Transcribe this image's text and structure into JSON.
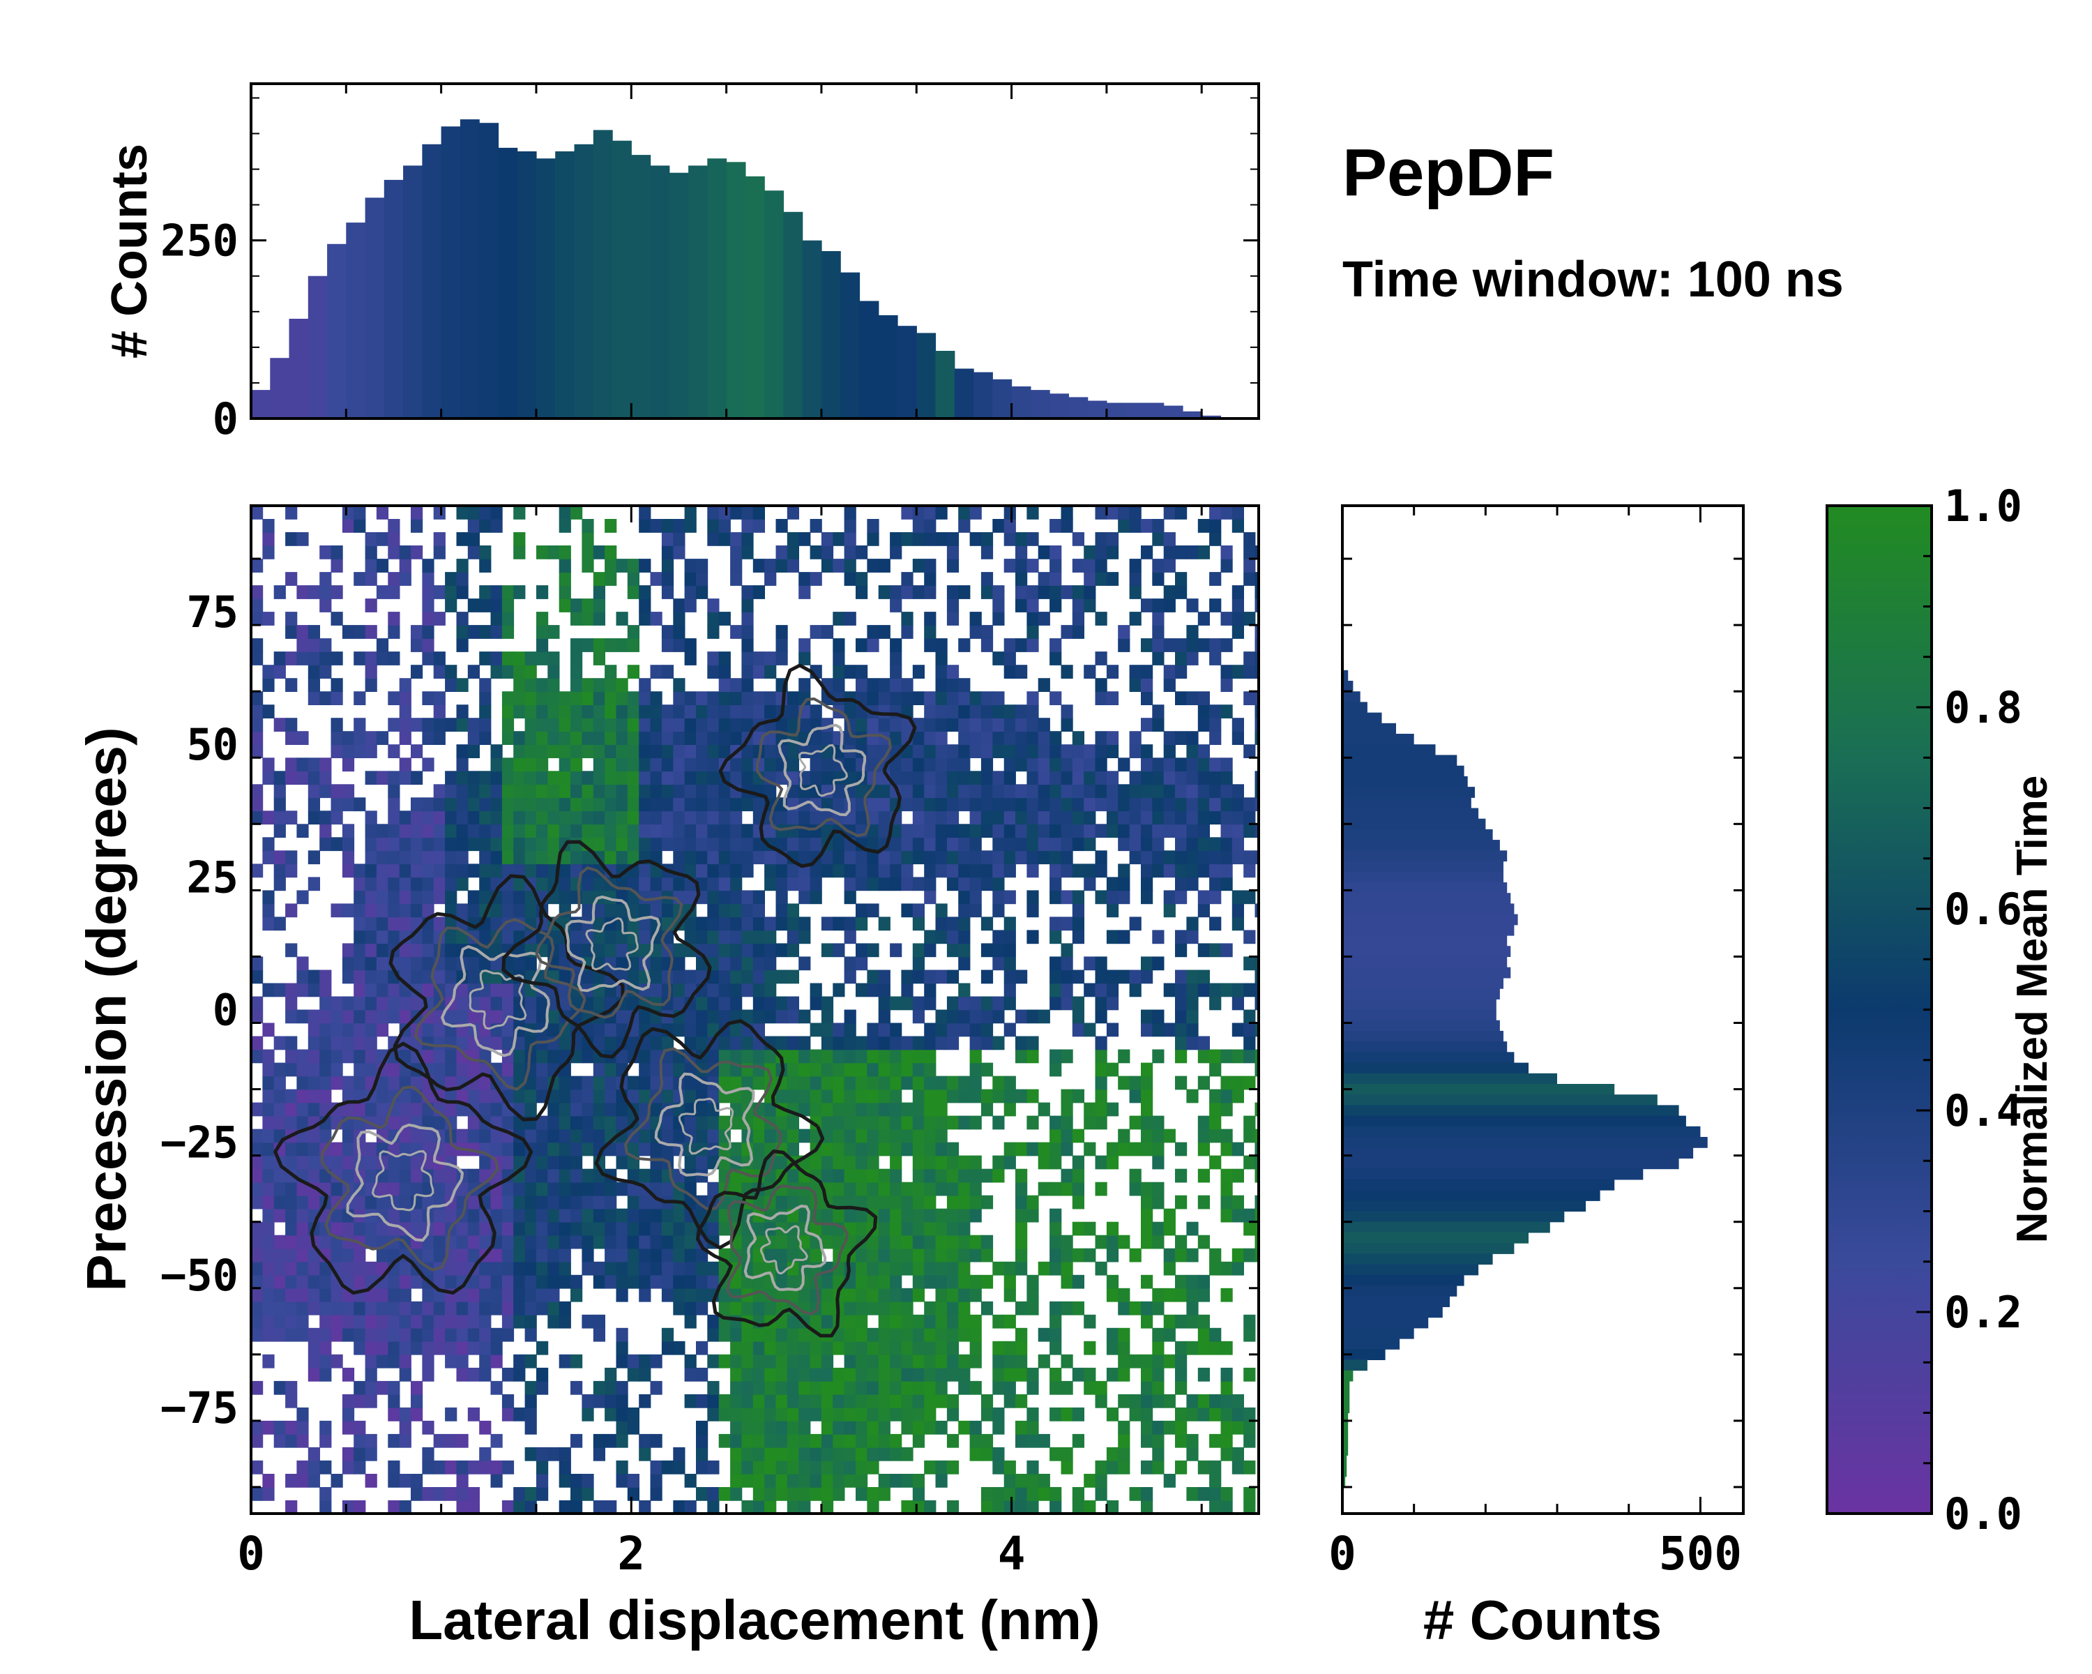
{
  "title": "PepDF",
  "subtitle": "Time window: 100 ns",
  "colors": {
    "cmap_low": "#6a33a2",
    "cmap_q1": "#3a4a9b",
    "cmap_mid": "#0c3a6e",
    "cmap_q3": "#1a6e55",
    "cmap_high": "#228b22",
    "contour_dark": "#1a1a1a",
    "contour_mid": "#555555",
    "contour_light": "#aaaaaa"
  },
  "chart_data": [
    {
      "id": "top_histogram",
      "type": "bar",
      "ylabel": "# Counts",
      "xlim": [
        0,
        5.3
      ],
      "ylim": [
        0,
        470
      ],
      "yticks": [
        0,
        250
      ],
      "ytick_labels": [
        "0",
        "250"
      ],
      "bin_width": 0.1,
      "x": [
        0.05,
        0.15,
        0.25,
        0.35,
        0.45,
        0.55,
        0.65,
        0.75,
        0.85,
        0.95,
        1.05,
        1.15,
        1.25,
        1.35,
        1.45,
        1.55,
        1.65,
        1.75,
        1.85,
        1.95,
        2.05,
        2.15,
        2.25,
        2.35,
        2.45,
        2.55,
        2.65,
        2.75,
        2.85,
        2.95,
        3.05,
        3.15,
        3.25,
        3.35,
        3.45,
        3.55,
        3.65,
        3.75,
        3.85,
        3.95,
        4.05,
        4.15,
        4.25,
        4.35,
        4.45,
        4.55,
        4.65,
        4.75,
        4.85,
        4.95,
        5.05,
        5.15
      ],
      "values": [
        40,
        85,
        140,
        200,
        245,
        275,
        310,
        335,
        355,
        385,
        410,
        420,
        415,
        380,
        375,
        365,
        375,
        385,
        405,
        390,
        370,
        355,
        345,
        355,
        365,
        360,
        340,
        320,
        290,
        250,
        235,
        205,
        165,
        145,
        130,
        120,
        95,
        70,
        65,
        55,
        45,
        40,
        35,
        30,
        25,
        22,
        22,
        22,
        18,
        10,
        4,
        2
      ],
      "color_values": [
        0.18,
        0.17,
        0.17,
        0.2,
        0.25,
        0.28,
        0.3,
        0.34,
        0.38,
        0.42,
        0.45,
        0.47,
        0.48,
        0.5,
        0.52,
        0.55,
        0.58,
        0.6,
        0.62,
        0.64,
        0.64,
        0.63,
        0.65,
        0.67,
        0.7,
        0.74,
        0.76,
        0.72,
        0.66,
        0.6,
        0.56,
        0.52,
        0.5,
        0.5,
        0.48,
        0.55,
        0.66,
        0.47,
        0.4,
        0.35,
        0.32,
        0.3,
        0.29,
        0.28,
        0.27,
        0.27,
        0.26,
        0.26,
        0.26,
        0.26,
        0.26,
        0.26
      ]
    },
    {
      "id": "main_heatmap",
      "type": "heatmap",
      "xlabel": "Lateral displacement (nm)",
      "ylabel": "Precession (degrees)",
      "xlim": [
        0,
        5.3
      ],
      "ylim": [
        -95,
        95
      ],
      "xticks": [
        0,
        2,
        4
      ],
      "xtick_labels": [
        "0",
        "2",
        "4"
      ],
      "yticks": [
        75,
        50,
        25,
        0,
        -25,
        -50,
        -75
      ],
      "ytick_labels": [
        "75",
        "50",
        "25",
        "0",
        "−25",
        "−50",
        "−75"
      ],
      "description_regions": [
        {
          "label": "left purple cluster",
          "x": [
            0.1,
            1.4
          ],
          "y": [
            -62,
            10
          ],
          "value": 0.22
        },
        {
          "label": "central blue core",
          "x": [
            0.6,
            2.2
          ],
          "y": [
            -45,
            30
          ],
          "value": 0.45
        },
        {
          "label": "upper blue lobe",
          "x": [
            2.1,
            5.2
          ],
          "y": [
            20,
            62
          ],
          "value": 0.42
        },
        {
          "label": "right green lobe",
          "x": [
            2.4,
            3.8
          ],
          "y": [
            -92,
            -8
          ],
          "value": 0.9
        },
        {
          "label": "upper green patch",
          "x": [
            1.3,
            2.0
          ],
          "y": [
            30,
            58
          ],
          "value": 0.85
        }
      ]
    },
    {
      "id": "right_histogram",
      "type": "bar",
      "orientation": "horizontal",
      "xlabel": "# Counts",
      "xlim": [
        0,
        560
      ],
      "ylim": [
        -95,
        95
      ],
      "xticks": [
        0,
        500
      ],
      "xtick_labels": [
        "0",
        "500"
      ],
      "bin_width": 2,
      "y": [
        65,
        63,
        61,
        59,
        57,
        55,
        53,
        51,
        49,
        47,
        45,
        43,
        41,
        39,
        37,
        35,
        33,
        31,
        29,
        27,
        25,
        23,
        21,
        19,
        17,
        15,
        13,
        11,
        9,
        7,
        5,
        3,
        1,
        -1,
        -3,
        -5,
        -7,
        -9,
        -11,
        -13,
        -15,
        -17,
        -19,
        -21,
        -23,
        -25,
        -27,
        -29,
        -31,
        -33,
        -35,
        -37,
        -39,
        -41,
        -43,
        -45,
        -47,
        -49,
        -51,
        -53,
        -55,
        -57,
        -59,
        -61,
        -63,
        -65,
        -67,
        -69,
        -71,
        -73,
        -75,
        -77,
        -79,
        -81,
        -83,
        -85,
        -87,
        -89
      ],
      "values": [
        2,
        8,
        15,
        25,
        35,
        55,
        75,
        100,
        130,
        160,
        170,
        175,
        185,
        180,
        190,
        200,
        210,
        220,
        230,
        225,
        225,
        230,
        235,
        240,
        245,
        240,
        230,
        235,
        230,
        235,
        225,
        220,
        215,
        215,
        220,
        225,
        230,
        240,
        260,
        300,
        380,
        440,
        470,
        480,
        500,
        510,
        490,
        470,
        420,
        380,
        360,
        340,
        310,
        290,
        260,
        240,
        210,
        190,
        170,
        160,
        150,
        140,
        120,
        100,
        80,
        60,
        35,
        15,
        10,
        10,
        10,
        8,
        8,
        8,
        8,
        6,
        6,
        4
      ],
      "color_values": [
        0.42,
        0.42,
        0.42,
        0.42,
        0.44,
        0.44,
        0.44,
        0.44,
        0.45,
        0.45,
        0.45,
        0.45,
        0.44,
        0.43,
        0.42,
        0.42,
        0.41,
        0.4,
        0.38,
        0.36,
        0.33,
        0.31,
        0.3,
        0.3,
        0.29,
        0.29,
        0.28,
        0.28,
        0.29,
        0.3,
        0.3,
        0.31,
        0.32,
        0.33,
        0.35,
        0.38,
        0.42,
        0.46,
        0.52,
        0.6,
        0.66,
        0.62,
        0.55,
        0.5,
        0.46,
        0.44,
        0.43,
        0.43,
        0.45,
        0.48,
        0.5,
        0.52,
        0.56,
        0.62,
        0.66,
        0.63,
        0.58,
        0.54,
        0.5,
        0.47,
        0.45,
        0.45,
        0.45,
        0.46,
        0.46,
        0.5,
        0.6,
        0.88,
        0.9,
        0.9,
        0.9,
        0.9,
        0.9,
        0.9,
        0.9,
        0.9,
        0.9,
        0.9
      ]
    },
    {
      "id": "colorbar",
      "type": "colorbar",
      "label": "Normalized Mean Time",
      "range": [
        0,
        1
      ],
      "ticks": [
        0.0,
        0.2,
        0.4,
        0.6,
        0.8,
        1.0
      ],
      "tick_labels": [
        "0.0",
        "0.2",
        "0.4",
        "0.6",
        "0.8",
        "1.0"
      ]
    }
  ]
}
